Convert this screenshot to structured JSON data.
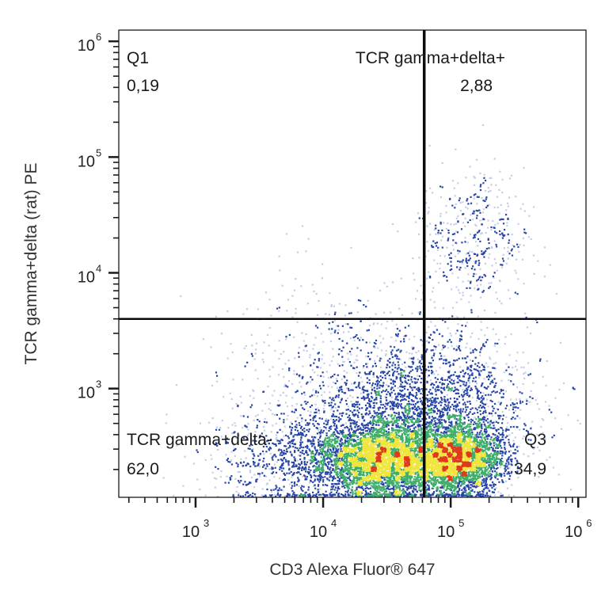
{
  "chart_data": {
    "type": "scatter",
    "style": "density pseudocolor flow cytometry dot plot",
    "xlabel": "CD3 Alexa Fluor® 647",
    "ylabel": "TCR gamma+delta (rat) PE",
    "x_scale": "log",
    "y_scale": "log",
    "xlim": [
      250,
      1150000
    ],
    "ylim": [
      115,
      1250000
    ],
    "x_ticks": [
      {
        "value": 1000,
        "base": "10",
        "exp": "3"
      },
      {
        "value": 10000,
        "base": "10",
        "exp": "4"
      },
      {
        "value": 100000,
        "base": "10",
        "exp": "5"
      },
      {
        "value": 1000000,
        "base": "10",
        "exp": "6"
      }
    ],
    "y_ticks": [
      {
        "value": 1000,
        "base": "10",
        "exp": "3"
      },
      {
        "value": 10000,
        "base": "10",
        "exp": "4"
      },
      {
        "value": 100000,
        "base": "10",
        "exp": "5"
      },
      {
        "value": 1000000,
        "base": "10",
        "exp": "6"
      }
    ],
    "gate": {
      "x": 62000,
      "y": 4000
    },
    "quadrants": [
      {
        "id": "Q1",
        "name": "Q1",
        "value": "0,19",
        "position": "top-left"
      },
      {
        "id": "Q2",
        "name": "TCR gamma+delta+",
        "value": "2,88",
        "position": "top-right"
      },
      {
        "id": "Q3",
        "name": "Q3",
        "value": "34,9",
        "position": "bottom-right"
      },
      {
        "id": "Q4",
        "name": "TCR gamma+delta-",
        "value": "62,0",
        "position": "bottom-left"
      }
    ],
    "populations": [
      {
        "cx": 29000,
        "cy": 250,
        "sx": 0.28,
        "sy": 0.18,
        "n": 4200
      },
      {
        "cx": 115000,
        "cy": 250,
        "sx": 0.18,
        "sy": 0.15,
        "n": 2600
      },
      {
        "cx": 150000,
        "cy": 20000,
        "sx": 0.22,
        "sy": 0.3,
        "n": 450
      },
      {
        "cx": 60000,
        "cy": 700,
        "sx": 0.4,
        "sy": 0.35,
        "n": 2200
      },
      {
        "cx": 5000,
        "cy": 250,
        "sx": 0.3,
        "sy": 0.25,
        "n": 700
      },
      {
        "cx": 9000,
        "cy": 1500,
        "sx": 0.4,
        "sy": 0.45,
        "n": 350
      }
    ],
    "colors": {
      "sparse": "#c7cde6",
      "low": "#2746a6",
      "mid": "#3fae6a",
      "high": "#f0e53c",
      "peak": "#e03a1e"
    }
  }
}
